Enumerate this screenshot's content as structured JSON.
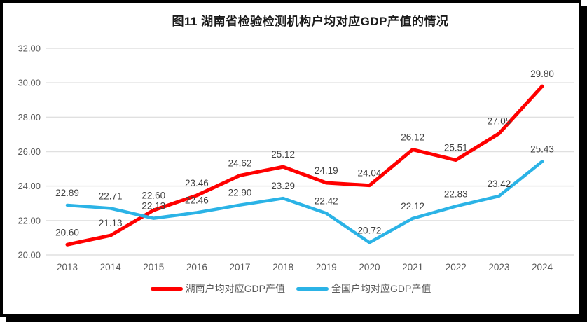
{
  "chart_data": {
    "type": "line",
    "title": "图11 湖南省检验检测机构户均对应GDP产值的情况",
    "categories": [
      "2013",
      "2014",
      "2015",
      "2016",
      "2017",
      "2018",
      "2019",
      "2020",
      "2021",
      "2022",
      "2023",
      "2024"
    ],
    "series": [
      {
        "name": "湖南户均对应GDP产值",
        "color": "#FF0000",
        "values": [
          20.6,
          21.13,
          22.6,
          23.46,
          24.62,
          25.12,
          24.19,
          24.04,
          26.12,
          25.51,
          27.05,
          29.8
        ]
      },
      {
        "name": "全国户均对应GDP产值",
        "color": "#2BB3E6",
        "values": [
          22.89,
          22.71,
          22.13,
          22.46,
          22.9,
          23.29,
          22.42,
          20.72,
          22.12,
          22.83,
          23.42,
          25.43
        ]
      }
    ],
    "xlabel": "",
    "ylabel": "",
    "ylim": [
      20,
      32
    ],
    "ytick_step": 2,
    "yticks": [
      "20.00",
      "22.00",
      "24.00",
      "26.00",
      "28.00",
      "30.00",
      "32.00"
    ],
    "grid": true,
    "data_labels": true,
    "legend_position": "bottom",
    "colors": {
      "grid": "#E0E0E0",
      "axis_text": "#595959",
      "data_label_text": "#404040",
      "frame_border": "#000000"
    }
  }
}
